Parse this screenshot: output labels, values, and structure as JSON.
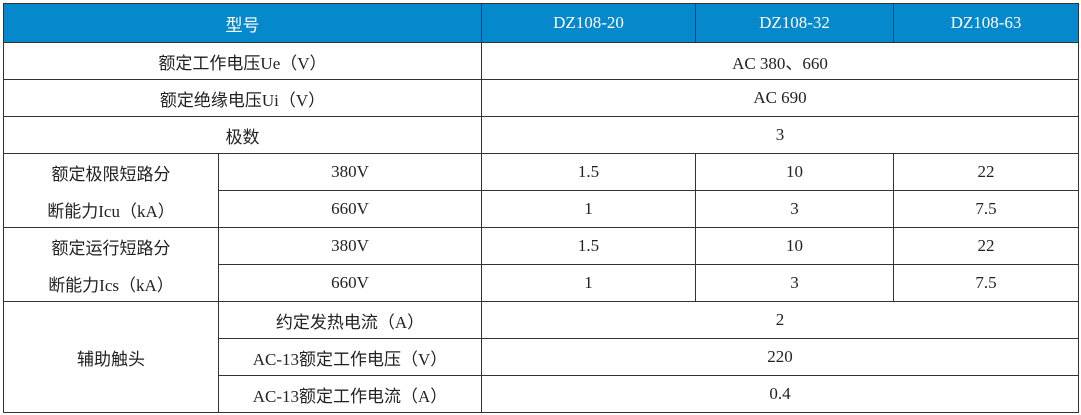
{
  "header": {
    "model_label": "型号",
    "models": [
      "DZ108-20",
      "DZ108-32",
      "DZ108-63"
    ],
    "color": "#0688cc"
  },
  "rows": {
    "rated_voltage": {
      "label": "额定工作电压Ue（V）",
      "value": "AC 380、660"
    },
    "insulation_voltage": {
      "label": "额定绝缘电压Ui（V）",
      "value": "AC 690"
    },
    "poles": {
      "label": "极数",
      "value": "3"
    },
    "icu": {
      "label_line1": "额定极限短路分",
      "label_line2": "断能力Icu（kA）",
      "sub": [
        {
          "voltage": "380V",
          "values": [
            "1.5",
            "10",
            "22"
          ]
        },
        {
          "voltage": "660V",
          "values": [
            "1",
            "3",
            "7.5"
          ]
        }
      ]
    },
    "ics": {
      "label_line1": "额定运行短路分",
      "label_line2": "断能力Ics（kA）",
      "sub": [
        {
          "voltage": "380V",
          "values": [
            "1.5",
            "10",
            "22"
          ]
        },
        {
          "voltage": "660V",
          "values": [
            "1",
            "3",
            "7.5"
          ]
        }
      ]
    },
    "aux": {
      "label": "辅助触头",
      "sub": [
        {
          "label": "约定发热电流（A）",
          "value": "2"
        },
        {
          "label": "AC-13额定工作电压（V）",
          "value": "220"
        },
        {
          "label": "AC-13额定工作电流（A）",
          "value": "0.4"
        }
      ]
    }
  }
}
